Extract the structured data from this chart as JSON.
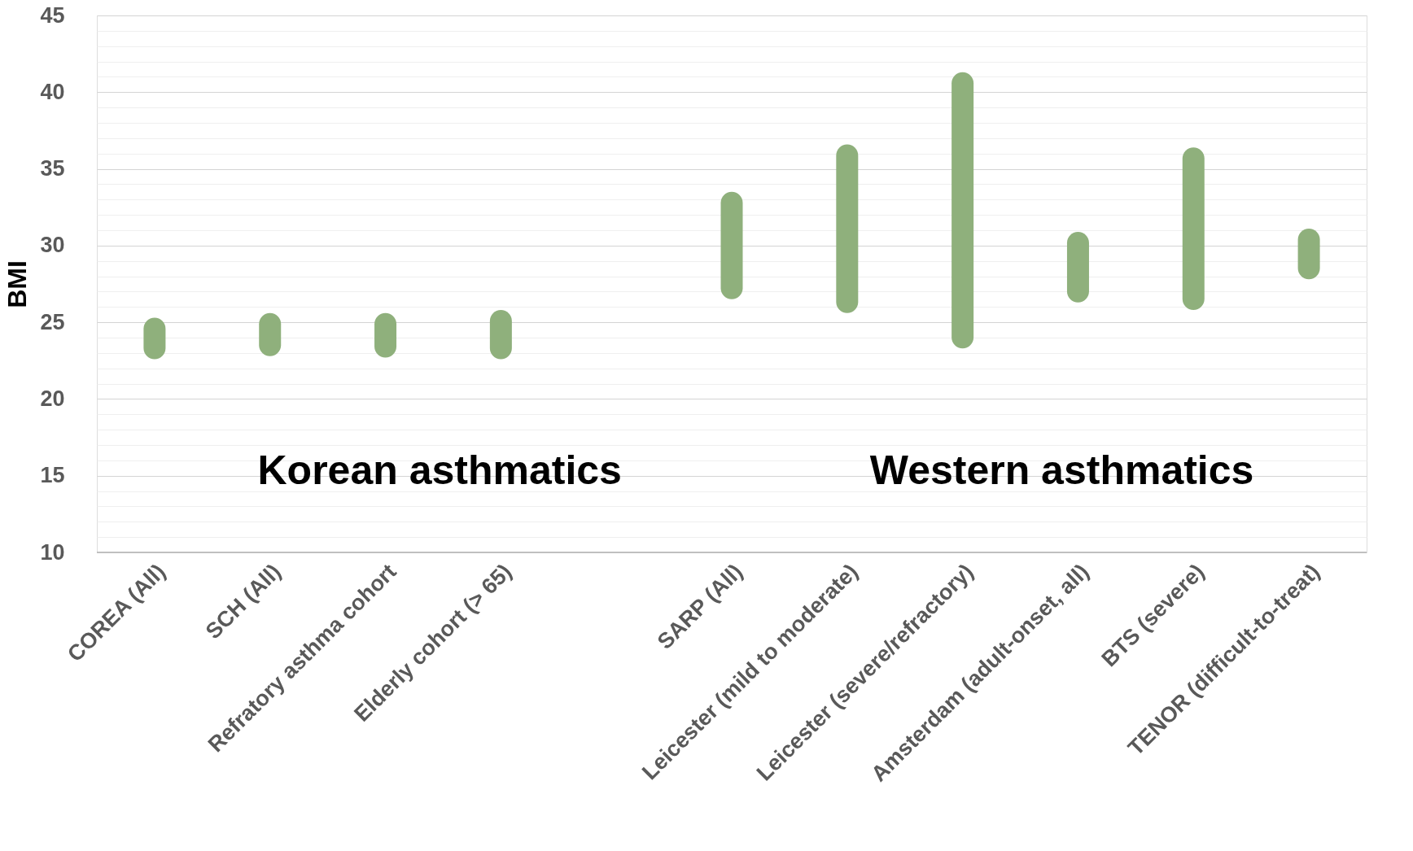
{
  "chart_data": {
    "type": "bar",
    "ylabel": "BMI",
    "categories": [
      "COREA (All)",
      "SCH (All)",
      "Refratory asthma cohort",
      "Elderly cohort (> 65)",
      null,
      "SARP (All)",
      "Leicester (mild to moderate)",
      "Leicester (severe/refractory)",
      "Amsterdam (adult-onset, all)",
      "BTS (severe)",
      "TENOR (difficult-to-treat)"
    ],
    "base": [
      22.6,
      22.8,
      22.7,
      22.6,
      null,
      26.5,
      25.6,
      23.3,
      26.3,
      25.8,
      27.8
    ],
    "values": [
      2.7,
      2.8,
      2.9,
      3.2,
      null,
      7.0,
      11.0,
      18.0,
      4.6,
      10.6,
      3.3
    ],
    "color": "#8fb07c",
    "ylim": [
      10,
      45
    ],
    "yticks": [
      10,
      {
        "value": 11,
        "label": null
      },
      {
        "value": 12,
        "label": null
      },
      {
        "value": 13,
        "label": null
      },
      {
        "value": 14,
        "label": null
      },
      15,
      {
        "value": 16,
        "label": null
      },
      {
        "value": 17,
        "label": null
      },
      {
        "value": 18,
        "label": null
      },
      {
        "value": 19,
        "label": null
      },
      20,
      {
        "value": 21,
        "label": null
      },
      {
        "value": 22,
        "label": null
      },
      {
        "value": 23,
        "label": null
      },
      {
        "value": 24,
        "label": null
      },
      25,
      {
        "value": 26,
        "label": null
      },
      {
        "value": 27,
        "label": null
      },
      {
        "value": 28,
        "label": null
      },
      {
        "value": 29,
        "label": null
      },
      30,
      {
        "value": 31,
        "label": null
      },
      {
        "value": 32,
        "label": null
      },
      {
        "value": 33,
        "label": null
      },
      {
        "value": 34,
        "label": null
      },
      35,
      {
        "value": 36,
        "label": null
      },
      {
        "value": 37,
        "label": null
      },
      {
        "value": 38,
        "label": null
      },
      {
        "value": 39,
        "label": null
      },
      40,
      {
        "value": 41,
        "label": null
      },
      {
        "value": 42,
        "label": null
      },
      {
        "value": 43,
        "label": null
      },
      {
        "value": 44,
        "label": null
      },
      45
    ],
    "grid": true,
    "annotations": [
      "Korean asthmatics",
      "Western asthmatics"
    ]
  }
}
